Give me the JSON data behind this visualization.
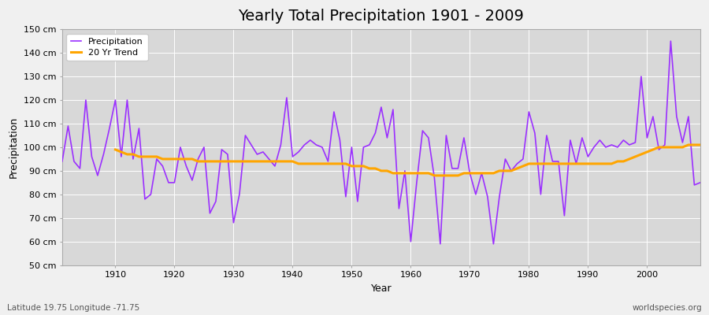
{
  "title": "Yearly Total Precipitation 1901 - 2009",
  "xlabel": "Year",
  "ylabel": "Precipitation",
  "subtitle_left": "Latitude 19.75 Longitude -71.75",
  "subtitle_right": "worldspecies.org",
  "legend_entries": [
    "Precipitation",
    "20 Yr Trend"
  ],
  "precip_color": "#9B30FF",
  "trend_color": "#FFA500",
  "fig_bg_color": "#F0F0F0",
  "plot_bg_color": "#D8D8D8",
  "ylim": [
    50,
    150
  ],
  "yticks": [
    50,
    60,
    70,
    80,
    90,
    100,
    110,
    120,
    130,
    140,
    150
  ],
  "ytick_labels": [
    "50 cm",
    "60 cm",
    "70 cm",
    "80 cm",
    "90 cm",
    "100 cm",
    "110 cm",
    "120 cm",
    "130 cm",
    "140 cm",
    "150 cm"
  ],
  "xlim": [
    1901,
    2009
  ],
  "xticks": [
    1910,
    1920,
    1930,
    1940,
    1950,
    1960,
    1970,
    1980,
    1990,
    2000
  ],
  "years": [
    1901,
    1902,
    1903,
    1904,
    1905,
    1906,
    1907,
    1908,
    1909,
    1910,
    1911,
    1912,
    1913,
    1914,
    1915,
    1916,
    1917,
    1918,
    1919,
    1920,
    1921,
    1922,
    1923,
    1924,
    1925,
    1926,
    1927,
    1928,
    1929,
    1930,
    1931,
    1932,
    1933,
    1934,
    1935,
    1936,
    1937,
    1938,
    1939,
    1940,
    1941,
    1942,
    1943,
    1944,
    1945,
    1946,
    1947,
    1948,
    1949,
    1950,
    1951,
    1952,
    1953,
    1954,
    1955,
    1956,
    1957,
    1958,
    1959,
    1960,
    1961,
    1962,
    1963,
    1964,
    1965,
    1966,
    1967,
    1968,
    1969,
    1970,
    1971,
    1972,
    1973,
    1974,
    1975,
    1976,
    1977,
    1978,
    1979,
    1980,
    1981,
    1982,
    1983,
    1984,
    1985,
    1986,
    1987,
    1988,
    1989,
    1990,
    1991,
    1992,
    1993,
    1994,
    1995,
    1996,
    1997,
    1998,
    1999,
    2000,
    2001,
    2002,
    2003,
    2004,
    2005,
    2006,
    2007,
    2008,
    2009
  ],
  "precipitation": [
    94,
    109,
    94,
    91,
    120,
    96,
    88,
    97,
    108,
    120,
    96,
    120,
    95,
    108,
    78,
    80,
    95,
    92,
    85,
    85,
    100,
    92,
    86,
    95,
    100,
    72,
    77,
    99,
    97,
    68,
    80,
    105,
    101,
    97,
    98,
    95,
    92,
    101,
    121,
    96,
    98,
    101,
    103,
    101,
    100,
    94,
    115,
    103,
    79,
    100,
    77,
    100,
    101,
    106,
    117,
    104,
    116,
    74,
    90,
    60,
    85,
    107,
    104,
    87,
    59,
    105,
    91,
    91,
    104,
    89,
    80,
    89,
    79,
    59,
    79,
    95,
    90,
    93,
    95,
    115,
    106,
    80,
    105,
    94,
    94,
    71,
    103,
    93,
    104,
    96,
    100,
    103,
    100,
    101,
    100,
    103,
    101,
    102,
    130,
    104,
    113,
    99,
    101,
    145,
    113,
    102,
    113,
    84,
    85
  ],
  "trend": [
    null,
    null,
    null,
    null,
    null,
    null,
    null,
    null,
    null,
    99,
    98,
    97,
    97,
    96,
    96,
    96,
    96,
    95,
    95,
    95,
    95,
    95,
    95,
    94,
    94,
    94,
    94,
    94,
    94,
    94,
    94,
    94,
    94,
    94,
    94,
    94,
    94,
    94,
    94,
    94,
    93,
    93,
    93,
    93,
    93,
    93,
    93,
    93,
    93,
    92,
    92,
    92,
    91,
    91,
    90,
    90,
    89,
    89,
    89,
    89,
    89,
    89,
    89,
    88,
    88,
    88,
    88,
    88,
    89,
    89,
    89,
    89,
    89,
    89,
    90,
    90,
    90,
    91,
    92,
    93,
    93,
    93,
    93,
    93,
    93,
    93,
    93,
    93,
    93,
    93,
    93,
    93,
    93,
    93,
    94,
    94,
    95,
    96,
    97,
    98,
    99,
    100,
    100,
    100,
    100,
    100,
    101,
    101,
    101,
    null
  ],
  "title_fontsize": 14,
  "axis_label_fontsize": 9,
  "tick_fontsize": 8,
  "legend_fontsize": 8,
  "subtitle_fontsize": 7.5
}
